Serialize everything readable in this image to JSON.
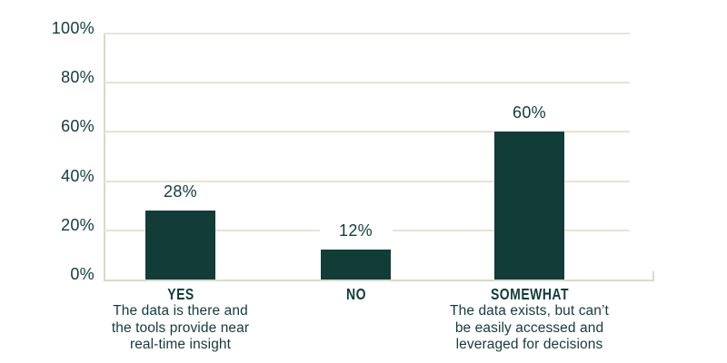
{
  "colors": {
    "background": "#ffffff",
    "bar": "#113c38",
    "text": "#123d3a",
    "grid": "#e7e3d6",
    "axis": "#ddd8c8"
  },
  "chart_data": {
    "type": "bar",
    "title": "",
    "xlabel": "",
    "ylabel": "",
    "categories": [
      "YES",
      "NO",
      "SOMEWHAT"
    ],
    "values": [
      28,
      12,
      60
    ],
    "value_labels": [
      "28%",
      "12%",
      "60%"
    ],
    "category_descriptions": [
      [
        "The data is there and",
        "the tools provide near",
        "real-time insight"
      ],
      [],
      [
        "The data exists, but can’t",
        "be easily accessed and",
        "leveraged for decisions"
      ]
    ],
    "y_ticks": [
      "100%",
      "80%",
      "60%",
      "40%",
      "20%",
      "0%"
    ],
    "ylim": [
      0,
      100
    ],
    "grid": true,
    "legend": false
  }
}
